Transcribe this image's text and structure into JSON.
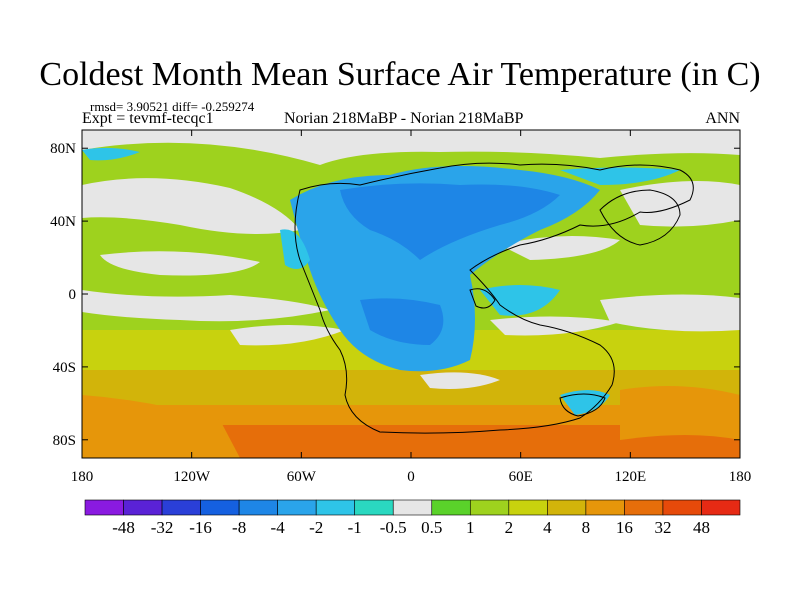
{
  "title": "Coldest Month Mean Surface Air Temperature (in C)",
  "stats_line": "rmsd= 3.90521 diff= -0.259274",
  "expt_line": "Expt = tevmf-tecqc1",
  "comparison": "Norian 218MaBP - Norian 218MaBP",
  "season": "ANN",
  "map": {
    "x_ticks": [
      {
        "lon": -180,
        "label": "180"
      },
      {
        "lon": -120,
        "label": "120W"
      },
      {
        "lon": -60,
        "label": "60W"
      },
      {
        "lon": 0,
        "label": "0"
      },
      {
        "lon": 60,
        "label": "60E"
      },
      {
        "lon": 120,
        "label": "120E"
      },
      {
        "lon": 180,
        "label": "180"
      }
    ],
    "y_ticks": [
      {
        "lat": 80,
        "label": "80N"
      },
      {
        "lat": 40,
        "label": "40N"
      },
      {
        "lat": 0,
        "label": "0"
      },
      {
        "lat": -40,
        "label": "40S"
      },
      {
        "lat": -80,
        "label": "80S"
      }
    ],
    "lon_range": [
      -180,
      180
    ],
    "lat_range": [
      -90,
      90
    ]
  },
  "colorbar": {
    "colors": [
      "#8a1ae0",
      "#5a22d6",
      "#2a3fd8",
      "#1560e0",
      "#1e86e6",
      "#2aa4ea",
      "#2ec4e8",
      "#2ad8c0",
      "#e6e6e6",
      "#5ad22a",
      "#9ed21e",
      "#c8d20e",
      "#d2b40a",
      "#e6960a",
      "#e66e0a",
      "#e64a0a",
      "#e62a14"
    ],
    "labels": [
      "-48",
      "-32",
      "-16",
      "-8",
      "-4",
      "-2",
      "-1",
      "-0.5",
      "0.5",
      "1",
      "2",
      "4",
      "8",
      "16",
      "32",
      "48"
    ]
  }
}
